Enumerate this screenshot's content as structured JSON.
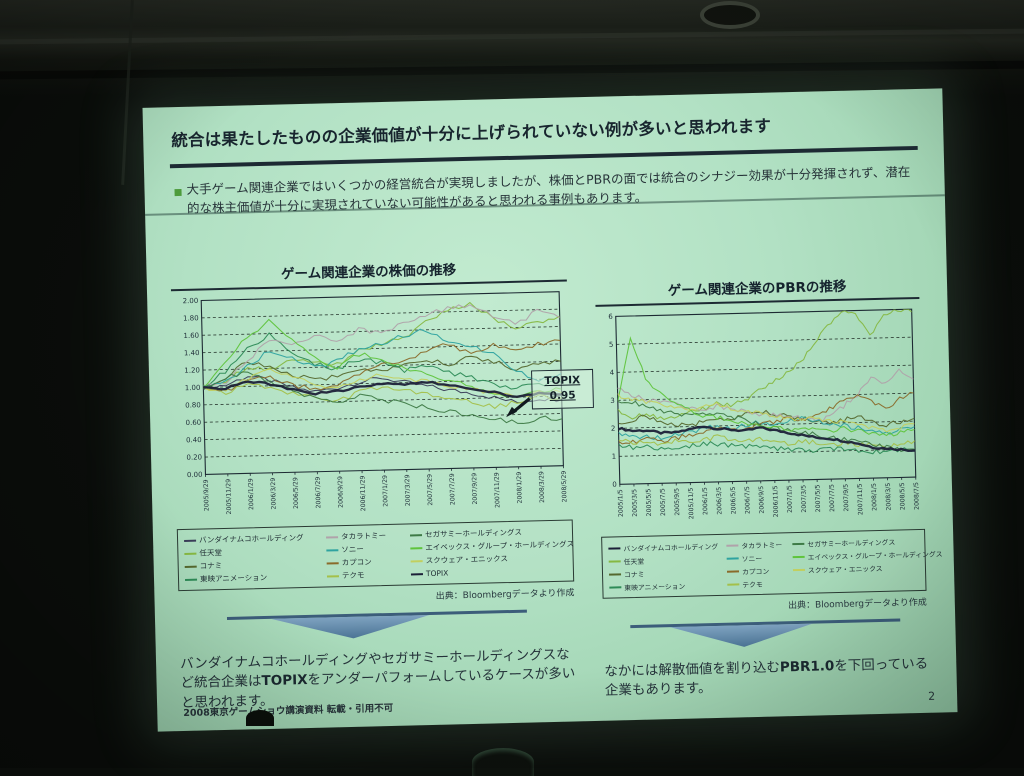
{
  "slide": {
    "title": "統合は果たしたものの企業価値が十分に上げられていない例が多いと思われます",
    "bullet_text": "大手ゲーム関連企業ではいくつかの経営統合が実現しましたが、株価とPBRの面では統合のシナジー効果が十分発揮されず、潜在的な株主価値が十分に実現されていない可能性があると思われる事例もあります。",
    "footer": "2008東京ゲームショウ講演資料 転載・引用不可",
    "page_number": "2"
  },
  "topix_callout": {
    "label": "TOPIX",
    "value": "0.95"
  },
  "messages": {
    "left": {
      "pre": "バンダイナムコホールディングやセガサミーホールディングスなど統合企業は",
      "bold": "TOPIX",
      "post": "をアンダーパフォームしているケースが多いと思われます。"
    },
    "right": {
      "pre": "なかには解散価値を割り込む",
      "bold": "PBR1.0",
      "post": "を下回っている企業もあります。"
    }
  },
  "colors": {
    "slide_background": "#b2e1c4",
    "title_text": "#18252e",
    "rule": "#1d2a33",
    "bullet_marker": "#4d9b3b",
    "arrow": "#4a7394",
    "grid_line": "#28372f"
  },
  "chart_data": [
    {
      "type": "line",
      "title": "ゲーム関連企業の株価の推移",
      "source": "出典：Bloombergデータより作成",
      "ylim": [
        0,
        2
      ],
      "ytick_step": 0.2,
      "y_decimals": 2,
      "grid": "dashed-horizontal",
      "legend_position": "below",
      "categories": [
        "2005/9/29",
        "2005/11/29",
        "2006/1/29",
        "2006/3/29",
        "2006/5/29",
        "2006/7/29",
        "2006/9/29",
        "2006/11/29",
        "2007/1/29",
        "2007/3/29",
        "2007/5/29",
        "2007/7/29",
        "2007/9/29",
        "2007/11/29",
        "2008/1/29",
        "2008/3/29",
        "2008/5/29"
      ],
      "series": [
        {
          "name": "バンダイナムコホールディング",
          "color": "#3a3d58",
          "bold": false,
          "values": [
            1.0,
            1.02,
            1.12,
            1.06,
            0.97,
            0.92,
            0.96,
            1.02,
            1.06,
            1.0,
            0.95,
            0.9,
            0.86,
            0.8,
            0.74,
            0.78,
            0.76
          ]
        },
        {
          "name": "任天堂",
          "color": "#86b842",
          "bold": false,
          "values": [
            1.0,
            1.08,
            1.22,
            1.18,
            1.32,
            1.25,
            1.22,
            1.38,
            1.44,
            1.52,
            1.68,
            1.82,
            1.88,
            1.72,
            1.58,
            1.66,
            1.72
          ]
        },
        {
          "name": "コナミ",
          "color": "#55682e",
          "bold": false,
          "values": [
            1.0,
            1.12,
            1.28,
            1.22,
            1.12,
            1.05,
            1.1,
            1.18,
            1.14,
            1.2,
            1.26,
            1.2,
            1.28,
            1.22,
            1.12,
            1.18,
            1.2
          ]
        },
        {
          "name": "東映アニメーション",
          "color": "#2e8b57",
          "bold": false,
          "values": [
            1.0,
            1.18,
            1.42,
            1.58,
            1.38,
            1.24,
            1.18,
            1.28,
            1.24,
            1.14,
            1.18,
            1.1,
            1.04,
            0.94,
            0.9,
            0.94,
            0.96
          ]
        },
        {
          "name": "タカラトミー",
          "color": "#b0a2aa",
          "bold": false,
          "values": [
            1.0,
            1.06,
            1.3,
            1.52,
            1.44,
            1.58,
            1.5,
            1.62,
            1.58,
            1.68,
            1.78,
            1.84,
            1.88,
            1.74,
            1.64,
            1.78,
            1.7
          ]
        },
        {
          "name": "ソニー",
          "color": "#2fa3a0",
          "bold": false,
          "values": [
            1.0,
            1.06,
            1.24,
            1.4,
            1.3,
            1.2,
            1.26,
            1.4,
            1.46,
            1.54,
            1.6,
            1.46,
            1.4,
            1.3,
            1.1,
            1.0,
            1.06
          ]
        },
        {
          "name": "カプコン",
          "color": "#8a6a2a",
          "bold": false,
          "values": [
            1.0,
            0.96,
            1.06,
            1.1,
            1.0,
            0.95,
            1.0,
            1.1,
            1.2,
            1.26,
            1.34,
            1.44,
            1.3,
            1.4,
            1.34,
            1.4,
            1.44
          ]
        },
        {
          "name": "テクモ",
          "color": "#a4c04a",
          "bold": false,
          "values": [
            1.0,
            0.94,
            1.04,
            0.98,
            0.9,
            0.84,
            0.8,
            0.9,
            0.96,
            0.9,
            0.86,
            0.8,
            0.76,
            0.7,
            0.74,
            0.8,
            0.78
          ]
        },
        {
          "name": "セガサミーホールディングス",
          "color": "#3e7a46",
          "bold": false,
          "values": [
            1.0,
            1.1,
            1.18,
            1.04,
            0.94,
            0.84,
            0.8,
            0.86,
            0.8,
            0.76,
            0.7,
            0.66,
            0.6,
            0.56,
            0.5,
            0.56,
            0.54
          ]
        },
        {
          "name": "エイベックス・グループ・ホールディングス",
          "color": "#5fc43c",
          "bold": false,
          "values": [
            1.0,
            1.28,
            1.58,
            1.74,
            1.54,
            1.3,
            1.2,
            1.34,
            1.28,
            1.18,
            1.1,
            1.0,
            0.94,
            0.86,
            0.8,
            0.86,
            0.88
          ]
        },
        {
          "name": "スクウェア・エニックス",
          "color": "#c2cf5e",
          "bold": false,
          "values": [
            1.0,
            0.96,
            1.08,
            1.18,
            1.1,
            1.0,
            0.96,
            1.04,
            1.1,
            1.04,
            1.0,
            0.94,
            0.9,
            0.84,
            0.8,
            0.86,
            0.84
          ]
        },
        {
          "name": "TOPIX",
          "color": "#1c2038",
          "bold": true,
          "values": [
            1.0,
            0.98,
            1.06,
            1.02,
            0.95,
            0.9,
            0.92,
            0.96,
            1.0,
            0.98,
            1.0,
            0.96,
            0.9,
            0.86,
            0.8,
            0.84,
            0.82
          ]
        }
      ]
    },
    {
      "type": "line",
      "title": "ゲーム関連企業のPBRの推移",
      "source": "出典：Bloombergデータより作成",
      "ylim": [
        0,
        6
      ],
      "ytick_step": 1,
      "y_decimals": 0,
      "grid": "dashed-horizontal",
      "legend_position": "below",
      "categories": [
        "2005/1/5",
        "2005/3/5",
        "2005/5/5",
        "2005/7/5",
        "2005/9/5",
        "2005/11/5",
        "2006/1/5",
        "2006/3/5",
        "2006/5/5",
        "2006/7/5",
        "2006/9/5",
        "2006/11/5",
        "2007/1/5",
        "2007/3/5",
        "2007/5/5",
        "2007/7/5",
        "2007/9/5",
        "2007/11/5",
        "2008/1/5",
        "2008/3/5",
        "2008/5/5",
        "2008/7/5"
      ],
      "series": [
        {
          "name": "バンダイナムコホールディング",
          "color": "#1c2038",
          "bold": true,
          "values": [
            2.0,
            1.9,
            1.9,
            1.8,
            1.8,
            1.9,
            2.0,
            1.9,
            1.85,
            1.8,
            1.9,
            1.8,
            1.7,
            1.6,
            1.5,
            1.45,
            1.35,
            1.25,
            1.1,
            1.05,
            1.0,
            0.95
          ]
        },
        {
          "name": "任天堂",
          "color": "#86b842",
          "bold": false,
          "values": [
            2.6,
            2.4,
            2.5,
            2.3,
            2.4,
            2.5,
            2.6,
            2.8,
            2.7,
            2.9,
            3.2,
            3.5,
            3.8,
            4.2,
            4.8,
            5.5,
            6.0,
            5.9,
            5.1,
            5.8,
            6.0,
            5.9
          ]
        },
        {
          "name": "コナミ",
          "color": "#55682e",
          "bold": false,
          "values": [
            2.2,
            2.3,
            2.4,
            2.2,
            2.1,
            2.0,
            2.2,
            2.3,
            2.2,
            2.4,
            2.5,
            2.4,
            2.3,
            2.2,
            2.1,
            2.0,
            2.1,
            2.2,
            2.0,
            1.9,
            2.0,
            2.1
          ]
        },
        {
          "name": "東映アニメーション",
          "color": "#2e8b57",
          "bold": false,
          "values": [
            1.4,
            1.3,
            1.3,
            1.2,
            1.25,
            1.3,
            1.4,
            1.35,
            1.3,
            1.25,
            1.2,
            1.15,
            1.1,
            1.05,
            1.0,
            1.1,
            1.05,
            1.0,
            0.95,
            0.9,
            1.0,
            1.0
          ]
        },
        {
          "name": "タカラトミー",
          "color": "#b0a2aa",
          "bold": false,
          "values": [
            3.4,
            3.2,
            3.0,
            2.9,
            2.8,
            2.7,
            2.6,
            2.7,
            2.6,
            2.5,
            2.4,
            2.35,
            2.3,
            2.2,
            2.1,
            2.2,
            2.6,
            3.0,
            3.6,
            3.4,
            3.8,
            3.5
          ]
        },
        {
          "name": "ソニー",
          "color": "#2fa3a0",
          "bold": false,
          "values": [
            1.8,
            1.7,
            1.7,
            1.6,
            1.7,
            1.8,
            1.9,
            2.0,
            1.9,
            2.0,
            2.1,
            2.0,
            2.1,
            2.2,
            2.1,
            2.0,
            1.9,
            1.8,
            1.7,
            1.6,
            1.7,
            1.8
          ]
        },
        {
          "name": "カプコン",
          "color": "#8a6a2a",
          "bold": false,
          "values": [
            1.5,
            1.5,
            1.6,
            1.5,
            1.6,
            1.7,
            1.8,
            1.9,
            1.8,
            1.9,
            2.0,
            2.1,
            2.2,
            2.1,
            2.3,
            2.5,
            2.8,
            3.0,
            2.7,
            2.5,
            2.8,
            3.0
          ]
        },
        {
          "name": "テクモ",
          "color": "#a4c04a",
          "bold": false,
          "values": [
            1.6,
            1.5,
            1.5,
            1.4,
            1.5,
            1.4,
            1.5,
            1.6,
            1.5,
            1.4,
            1.5,
            1.4,
            1.3,
            1.4,
            1.3,
            1.2,
            1.3,
            1.2,
            1.2,
            1.1,
            1.2,
            1.3
          ]
        },
        {
          "name": "セガサミーホールディングス",
          "color": "#3e7a46",
          "bold": false,
          "values": [
            3.0,
            2.9,
            2.8,
            2.6,
            2.5,
            2.4,
            2.5,
            2.4,
            2.3,
            2.2,
            2.0,
            1.9,
            1.8,
            1.7,
            1.6,
            1.5,
            1.4,
            1.3,
            1.2,
            1.1,
            1.0,
            1.0
          ]
        },
        {
          "name": "エイベックス・グループ・ホールディングス",
          "color": "#5fc43c",
          "bold": false,
          "values": [
            3.0,
            5.2,
            3.8,
            3.2,
            2.9,
            2.6,
            2.4,
            2.3,
            2.2,
            2.1,
            2.0,
            1.9,
            1.8,
            1.9,
            1.8,
            1.7,
            1.8,
            1.7,
            1.6,
            1.5,
            1.6,
            1.7
          ]
        },
        {
          "name": "スクウェア・エニックス",
          "color": "#c2cf5e",
          "bold": false,
          "values": [
            3.2,
            3.0,
            2.9,
            2.8,
            2.7,
            2.6,
            2.7,
            2.8,
            2.6,
            2.5,
            2.4,
            2.3,
            2.2,
            2.1,
            2.2,
            2.1,
            2.0,
            1.9,
            1.8,
            1.7,
            1.8,
            1.9
          ]
        }
      ]
    }
  ]
}
